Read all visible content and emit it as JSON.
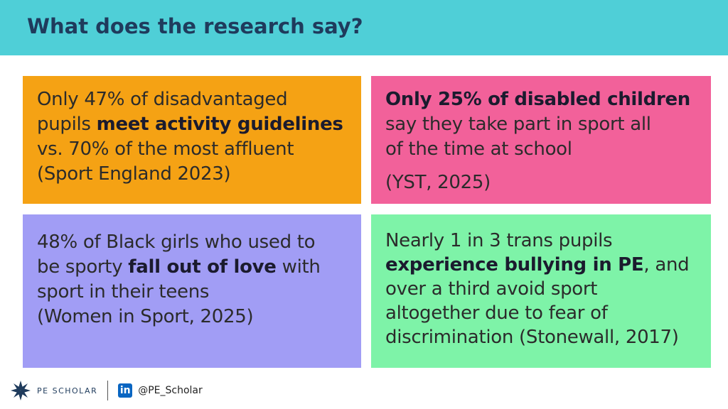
{
  "header": {
    "title": "What does the research say?"
  },
  "cards": [
    {
      "color": "#f5a214",
      "lines": [
        {
          "parts": [
            {
              "text": "Only 47% of disadvantaged",
              "bold": false
            }
          ]
        },
        {
          "parts": [
            {
              "text": "pupils ",
              "bold": false
            },
            {
              "text": "meet activity guidelines",
              "bold": true
            }
          ]
        },
        {
          "parts": [
            {
              "text": "vs. 70% of the most affluent",
              "bold": false
            }
          ]
        },
        {
          "parts": [
            {
              "text": "(Sport England 2023)",
              "bold": false
            }
          ]
        }
      ]
    },
    {
      "color": "#f2619a",
      "lines": [
        {
          "parts": [
            {
              "text": "Only 25% of disabled children",
              "bold": true
            }
          ]
        },
        {
          "parts": [
            {
              "text": "say they take part in sport all",
              "bold": false
            }
          ]
        },
        {
          "parts": [
            {
              "text": "of the time at school",
              "bold": false
            }
          ]
        },
        {
          "parts": [
            {
              "text": "(YST, 2025)",
              "bold": false
            }
          ]
        }
      ]
    },
    {
      "color": "#a19df5",
      "lines": [
        {
          "parts": [
            {
              "text": "48% of Black girls who used to",
              "bold": false
            }
          ]
        },
        {
          "parts": [
            {
              "text": "be sporty ",
              "bold": false
            },
            {
              "text": "fall out of love",
              "bold": true
            },
            {
              "text": " with",
              "bold": false
            }
          ]
        },
        {
          "parts": [
            {
              "text": "sport in their teens",
              "bold": false
            }
          ]
        },
        {
          "parts": [
            {
              "text": "(Women in Sport, 2025)",
              "bold": false
            }
          ]
        }
      ]
    },
    {
      "color": "#7ef3a8",
      "lines": [
        {
          "parts": [
            {
              "text": "Nearly 1 in 3 trans pupils",
              "bold": false
            }
          ]
        },
        {
          "parts": [
            {
              "text": "experience bullying in PE",
              "bold": true
            },
            {
              "text": ", and",
              "bold": false
            }
          ]
        },
        {
          "parts": [
            {
              "text": "over a third avoid sport",
              "bold": false
            }
          ]
        },
        {
          "parts": [
            {
              "text": "altogether due to fear of",
              "bold": false
            }
          ]
        },
        {
          "parts": [
            {
              "text": "discrimination",
              "bold": false
            },
            {
              "text": " (Stonewall, 2017)",
              "bold": false
            }
          ]
        }
      ]
    }
  ],
  "footer": {
    "brand": "PE SCHOLAR",
    "linkedin_icon": "in",
    "handle": "@PE_Scholar"
  }
}
